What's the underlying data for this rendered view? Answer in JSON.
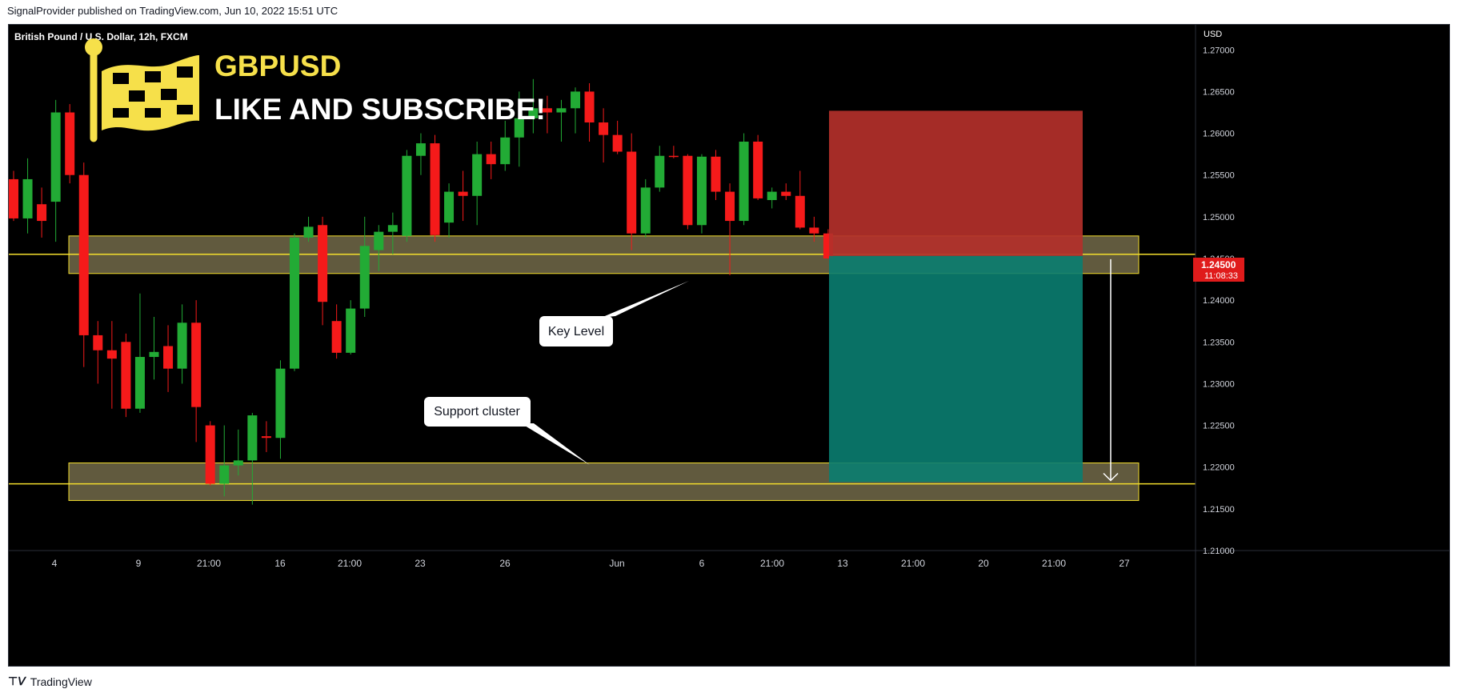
{
  "header": {
    "publisher": "SignalProvider published on TradingView.com, Jun 10, 2022 15:51 UTC"
  },
  "footer": {
    "brand": "TradingView"
  },
  "chart": {
    "symbol_label": "British Pound / U.S. Dollar, 12h, FXCM",
    "currency": "USD",
    "price_tag": "1.24500",
    "countdown_tag": "11:08:33",
    "banner_title": "GBPUSD",
    "banner_subtitle": "LIKE AND SUBSCRIBE!",
    "callout_key": "Key Level",
    "callout_support": "Support cluster",
    "colors": {
      "up": "#22ab35",
      "down": "#f51a1a",
      "zone_fill": "#6b6445",
      "zone_line": "#f2dd2c",
      "stop_zone": "#b3302a",
      "target_zone": "#0a7d70",
      "price_tag_bg": "#e01b1b",
      "flag_yellow": "#f6e04a"
    },
    "icons": [
      "flag-icon",
      "tradingview-logo-icon",
      "arrow-down-icon"
    ]
  },
  "chart_data": {
    "type": "candlestick",
    "ylim": [
      1.21,
      1.273
    ],
    "y_ticks": [
      "1.27000",
      "1.26500",
      "1.26000",
      "1.25500",
      "1.25000",
      "1.24500",
      "1.24000",
      "1.23500",
      "1.23000",
      "1.22500",
      "1.22000",
      "1.21500",
      "1.21000"
    ],
    "x_ticks": [
      "4",
      "9",
      "21:00",
      "16",
      "21:00",
      "23",
      "26",
      "Jun",
      "6",
      "21:00",
      "13",
      "21:00",
      "20",
      "21:00",
      "27"
    ],
    "candles": [
      [
        1.2545,
        1.2555,
        1.2495,
        1.2498
      ],
      [
        1.2498,
        1.257,
        1.248,
        1.2545
      ],
      [
        1.2515,
        1.2535,
        1.2475,
        1.2495
      ],
      [
        1.2518,
        1.264,
        1.247,
        1.2625
      ],
      [
        1.2625,
        1.2635,
        1.254,
        1.255
      ],
      [
        1.255,
        1.2565,
        1.232,
        1.2358
      ],
      [
        1.2358,
        1.2375,
        1.23,
        1.234
      ],
      [
        1.234,
        1.2375,
        1.227,
        1.233
      ],
      [
        1.235,
        1.236,
        1.226,
        1.227
      ],
      [
        1.227,
        1.2408,
        1.2265,
        1.2332
      ],
      [
        1.2332,
        1.238,
        1.2305,
        1.2338
      ],
      [
        1.2345,
        1.237,
        1.229,
        1.2318
      ],
      [
        1.2318,
        1.2395,
        1.23,
        1.2373
      ],
      [
        1.2373,
        1.24,
        1.223,
        1.2272
      ],
      [
        1.225,
        1.2255,
        1.2178,
        1.218
      ],
      [
        1.218,
        1.225,
        1.2165,
        1.2202
      ],
      [
        1.2202,
        1.2245,
        1.219,
        1.2208
      ],
      [
        1.2208,
        1.2265,
        1.2155,
        1.2262
      ],
      [
        1.2237,
        1.2255,
        1.2218,
        1.2235
      ],
      [
        1.2235,
        1.2328,
        1.221,
        1.2318
      ],
      [
        1.2318,
        1.248,
        1.2315,
        1.2475
      ],
      [
        1.2475,
        1.25,
        1.247,
        1.2488
      ],
      [
        1.249,
        1.25,
        1.237,
        1.2398
      ],
      [
        1.2375,
        1.2395,
        1.233,
        1.2337
      ],
      [
        1.2337,
        1.24,
        1.2335,
        1.239
      ],
      [
        1.239,
        1.25,
        1.238,
        1.2465
      ],
      [
        1.246,
        1.249,
        1.2435,
        1.2482
      ],
      [
        1.2482,
        1.2505,
        1.2455,
        1.249
      ],
      [
        1.2477,
        1.258,
        1.247,
        1.2573
      ],
      [
        1.2573,
        1.26,
        1.255,
        1.2588
      ],
      [
        1.2588,
        1.2598,
        1.247,
        1.2478
      ],
      [
        1.2493,
        1.254,
        1.2475,
        1.253
      ],
      [
        1.253,
        1.2555,
        1.2495,
        1.2525
      ],
      [
        1.2525,
        1.259,
        1.249,
        1.2575
      ],
      [
        1.2575,
        1.259,
        1.2545,
        1.2563
      ],
      [
        1.2563,
        1.2615,
        1.2555,
        1.2595
      ],
      [
        1.2595,
        1.265,
        1.256,
        1.2618
      ],
      [
        1.2618,
        1.2665,
        1.26,
        1.263
      ],
      [
        1.263,
        1.2645,
        1.26,
        1.2625
      ],
      [
        1.2625,
        1.264,
        1.259,
        1.263
      ],
      [
        1.263,
        1.2655,
        1.26,
        1.265
      ],
      [
        1.265,
        1.266,
        1.259,
        1.2613
      ],
      [
        1.2613,
        1.263,
        1.2565,
        1.2598
      ],
      [
        1.2598,
        1.2615,
        1.2575,
        1.2578
      ],
      [
        1.2578,
        1.26,
        1.246,
        1.248
      ],
      [
        1.248,
        1.2545,
        1.2475,
        1.2535
      ],
      [
        1.2535,
        1.2585,
        1.253,
        1.2573
      ],
      [
        1.2573,
        1.2585,
        1.257,
        1.2572
      ],
      [
        1.2573,
        1.2575,
        1.2485,
        1.249
      ],
      [
        1.249,
        1.2575,
        1.248,
        1.2572
      ],
      [
        1.2572,
        1.258,
        1.252,
        1.253
      ],
      [
        1.253,
        1.254,
        1.243,
        1.2495
      ],
      [
        1.2495,
        1.26,
        1.249,
        1.259
      ],
      [
        1.259,
        1.2598,
        1.252,
        1.2522
      ],
      [
        1.252,
        1.2535,
        1.251,
        1.253
      ],
      [
        1.253,
        1.254,
        1.252,
        1.2525
      ],
      [
        1.2525,
        1.2555,
        1.2485,
        1.2487
      ],
      [
        1.2487,
        1.25,
        1.247,
        1.248
      ],
      [
        1.248,
        1.2485,
        1.245,
        1.245
      ]
    ],
    "key_level_zone": [
      1.2432,
      1.2477
    ],
    "key_level_line": 1.2455,
    "support_zone": [
      1.216,
      1.2205
    ],
    "support_line": 1.218,
    "position": {
      "stop": 1.2627,
      "entry": 1.2453,
      "target": 1.2182
    }
  }
}
